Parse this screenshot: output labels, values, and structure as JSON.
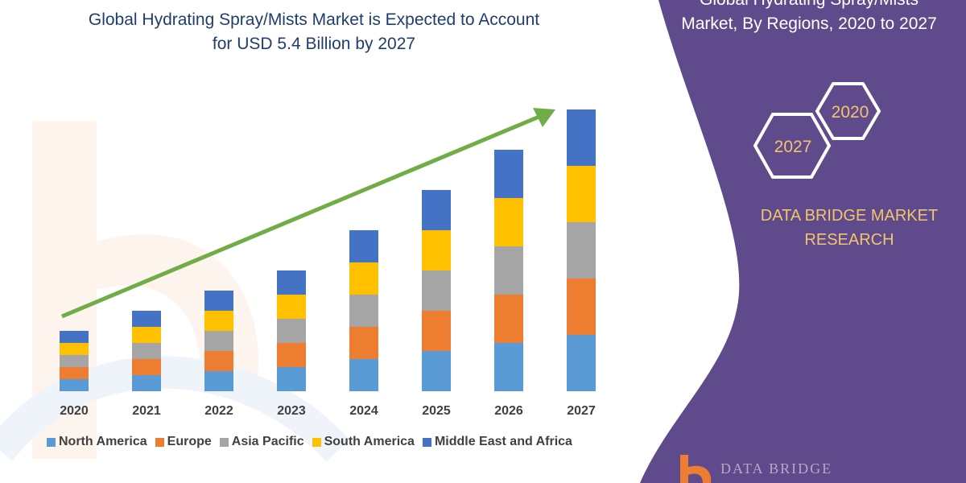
{
  "title": "Global Hydrating Spray/Mists Market is Expected to Account for USD 5.4 Billion by 2027",
  "title_lines": [
    "Global Hydrating Spray/Mists Market is Expected to Account",
    "for USD 5.4 Billion by 2027"
  ],
  "side_panel": {
    "title_lines": [
      "Global Hydrating Spray/Mists",
      "Market, By Regions, 2020 to 2027"
    ],
    "hex_labels": [
      "2020",
      "2027"
    ],
    "brand_lines": [
      "DATA BRIDGE MARKET",
      "RESEARCH"
    ],
    "logo_text": "DATA BRIDGE",
    "color": "#5f4b8b"
  },
  "chart_data": {
    "type": "bar",
    "stacked": true,
    "categories": [
      "2020",
      "2021",
      "2022",
      "2023",
      "2024",
      "2025",
      "2026",
      "2027"
    ],
    "series": [
      {
        "name": "North America",
        "color": "#5b9bd5",
        "values": [
          1.5,
          2,
          2.5,
          3,
          4,
          5,
          6,
          7
        ]
      },
      {
        "name": "Europe",
        "color": "#ed7d31",
        "values": [
          1.5,
          2,
          2.5,
          3,
          4,
          5,
          6,
          7
        ]
      },
      {
        "name": "Asia Pacific",
        "color": "#a5a5a5",
        "values": [
          1.5,
          2,
          2.5,
          3,
          4,
          5,
          6,
          7
        ]
      },
      {
        "name": "South America",
        "color": "#ffc000",
        "values": [
          1.5,
          2,
          2.5,
          3,
          4,
          5,
          6,
          7
        ]
      },
      {
        "name": "Middle East and Africa",
        "color": "#4472c4",
        "values": [
          1.5,
          2,
          2.5,
          3,
          4,
          5,
          6,
          7
        ]
      }
    ],
    "legend_position": "bottom",
    "grid": false,
    "y_axis_shown": false,
    "trend_arrow_color": "#70ad47"
  }
}
